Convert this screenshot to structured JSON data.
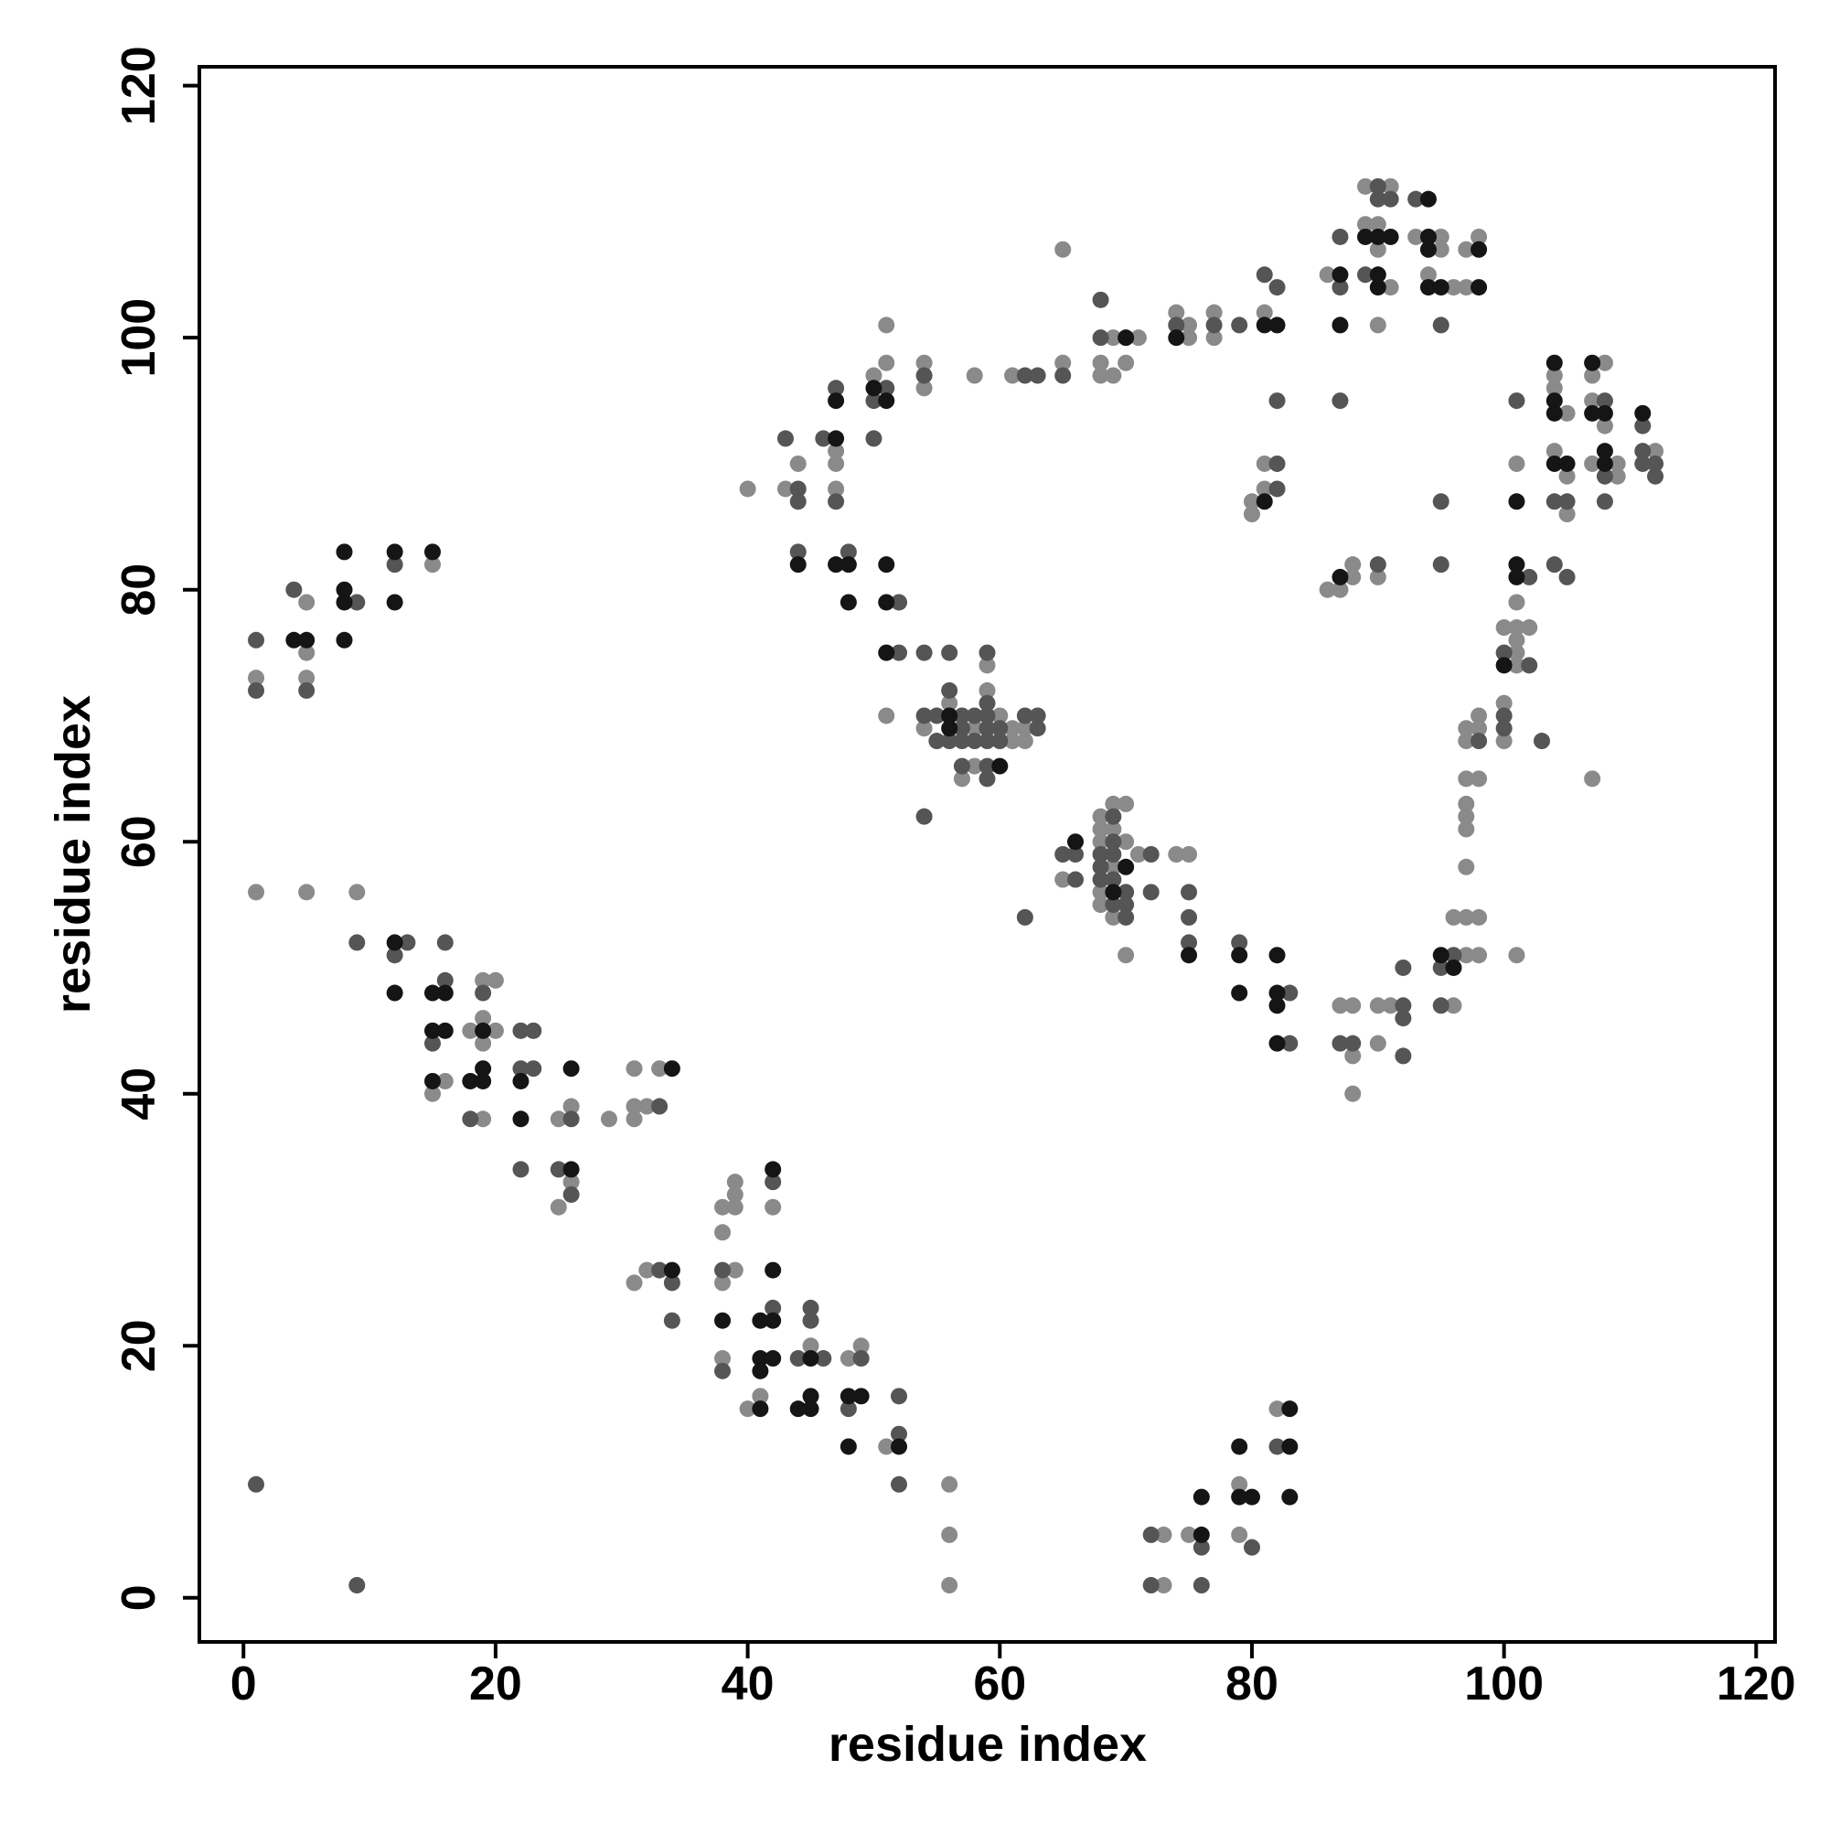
{
  "chart_data": {
    "type": "scatter",
    "xlabel": "residue index",
    "ylabel": "residue index",
    "xlim": [
      -3.5,
      121.5
    ],
    "ylim": [
      -3.5,
      121.5
    ],
    "xticks": [
      0,
      20,
      40,
      60,
      80,
      100,
      120
    ],
    "yticks": [
      0,
      20,
      40,
      60,
      80,
      100,
      120
    ],
    "grid": false,
    "series": [
      {
        "color": "#8a8a8a",
        "x": [
          1,
          5,
          5,
          5,
          15,
          1,
          5,
          9,
          15,
          16,
          18,
          19,
          20,
          19,
          19,
          20,
          19,
          25,
          26,
          26,
          25,
          29,
          31,
          31,
          32,
          31,
          33,
          31,
          32,
          38,
          38,
          39,
          39,
          39,
          39,
          38,
          38,
          42,
          41,
          40,
          45,
          48,
          49,
          51,
          56,
          56,
          56,
          73,
          73,
          75,
          79,
          79,
          82,
          40,
          43,
          44,
          47,
          47,
          47,
          50,
          51,
          51,
          51,
          54,
          54,
          54,
          56,
          57,
          58,
          58,
          58,
          59,
          59,
          60,
          61,
          61,
          61,
          62,
          62,
          65,
          65,
          65,
          68,
          68,
          68,
          68,
          68,
          69,
          69,
          69,
          69,
          70,
          70,
          70,
          71,
          74,
          75,
          68,
          68,
          69,
          69,
          70,
          71,
          74,
          75,
          75,
          77,
          77,
          81,
          80,
          80,
          81,
          81,
          86,
          89,
          89,
          90,
          90,
          90,
          91,
          91,
          93,
          94,
          95,
          95,
          96,
          97,
          97,
          98,
          86,
          87,
          88,
          88,
          90,
          87,
          88,
          88,
          88,
          90,
          90,
          91,
          96,
          96,
          97,
          98,
          97,
          98,
          97,
          97,
          97,
          97,
          97,
          98,
          97,
          97,
          98,
          98,
          100,
          100,
          100,
          101,
          101,
          101,
          101,
          102,
          101,
          101,
          101,
          104,
          104,
          104,
          105,
          105,
          105,
          107,
          107,
          107,
          108,
          108,
          109,
          109,
          107,
          112
        ],
        "values": [
          73,
          79,
          75,
          73,
          82,
          56,
          56,
          56,
          40,
          41,
          45,
          49,
          49,
          46,
          44,
          45,
          38,
          38,
          39,
          33,
          31,
          38,
          42,
          39,
          39,
          38,
          42,
          25,
          26,
          31,
          29,
          33,
          32,
          31,
          26,
          25,
          19,
          31,
          16,
          15,
          20,
          19,
          20,
          12,
          9,
          5,
          1,
          5,
          1,
          5,
          9,
          5,
          15,
          88,
          88,
          90,
          91,
          90,
          88,
          97,
          98,
          101,
          70,
          98,
          96,
          69,
          71,
          65,
          97,
          69,
          66,
          74,
          72,
          70,
          69,
          68,
          97,
          69,
          68,
          107,
          98,
          57,
          62,
          61,
          60,
          56,
          55,
          63,
          61,
          58,
          54,
          63,
          60,
          51,
          59,
          59,
          59,
          98,
          97,
          100,
          97,
          98,
          100,
          102,
          101,
          100,
          102,
          100,
          102,
          87,
          86,
          90,
          88,
          105,
          112,
          109,
          109,
          107,
          101,
          112,
          104,
          108,
          105,
          108,
          107,
          104,
          107,
          104,
          108,
          80,
          80,
          82,
          81,
          81,
          47,
          47,
          43,
          40,
          47,
          44,
          47,
          47,
          54,
          54,
          54,
          51,
          51,
          58,
          62,
          61,
          63,
          65,
          65,
          69,
          68,
          70,
          69,
          71,
          68,
          77,
          77,
          76,
          75,
          79,
          77,
          74,
          90,
          51,
          97,
          96,
          91,
          94,
          89,
          86,
          97,
          95,
          90,
          98,
          93,
          90,
          89,
          65,
          91
        ]
      },
      {
        "color": "#555555",
        "x": [
          1,
          1,
          4,
          5,
          9,
          12,
          9,
          13,
          12,
          16,
          16,
          15,
          19,
          18,
          22,
          23,
          22,
          23,
          22,
          26,
          25,
          26,
          33,
          1,
          9,
          33,
          34,
          34,
          38,
          38,
          42,
          42,
          45,
          45,
          44,
          46,
          49,
          48,
          52,
          52,
          52,
          72,
          72,
          76,
          76,
          80,
          82,
          43,
          44,
          44,
          46,
          47,
          47,
          44,
          48,
          50,
          50,
          51,
          52,
          52,
          54,
          54,
          56,
          54,
          55,
          55,
          56,
          56,
          57,
          57,
          57,
          57,
          58,
          58,
          59,
          59,
          59,
          59,
          59,
          59,
          59,
          60,
          60,
          62,
          62,
          63,
          63,
          63,
          54,
          62,
          65,
          65,
          66,
          66,
          68,
          68,
          68,
          69,
          69,
          69,
          69,
          69,
          70,
          70,
          70,
          72,
          72,
          75,
          75,
          75,
          79,
          83,
          83,
          68,
          68,
          74,
          77,
          79,
          81,
          82,
          82,
          82,
          82,
          87,
          87,
          87,
          89,
          90,
          90,
          91,
          93,
          95,
          90,
          95,
          95,
          87,
          88,
          92,
          92,
          92,
          92,
          95,
          96,
          95,
          98,
          100,
          100,
          100,
          102,
          102,
          101,
          103,
          104,
          104,
          105,
          105,
          108,
          108,
          108,
          111,
          111,
          111,
          112,
          112
        ],
        "values": [
          76,
          72,
          80,
          72,
          79,
          82,
          52,
          52,
          51,
          52,
          49,
          44,
          48,
          38,
          45,
          45,
          42,
          42,
          34,
          38,
          34,
          32,
          39,
          9,
          1,
          26,
          25,
          22,
          26,
          18,
          33,
          23,
          23,
          22,
          19,
          19,
          19,
          15,
          13,
          16,
          9,
          5,
          1,
          4,
          1,
          4,
          12,
          92,
          88,
          87,
          92,
          96,
          87,
          83,
          83,
          92,
          95,
          96,
          79,
          75,
          97,
          75,
          75,
          70,
          70,
          68,
          72,
          68,
          70,
          69,
          68,
          66,
          70,
          68,
          75,
          71,
          70,
          69,
          68,
          66,
          65,
          69,
          68,
          97,
          70,
          97,
          70,
          69,
          62,
          54,
          97,
          59,
          59,
          57,
          59,
          58,
          57,
          62,
          60,
          59,
          57,
          55,
          56,
          55,
          54,
          59,
          56,
          56,
          54,
          52,
          52,
          48,
          44,
          103,
          100,
          101,
          101,
          101,
          105,
          104,
          95,
          90,
          88,
          108,
          104,
          95,
          105,
          112,
          111,
          111,
          111,
          101,
          82,
          87,
          82,
          44,
          44,
          47,
          46,
          50,
          43,
          50,
          51,
          47,
          68,
          70,
          69,
          75,
          74,
          81,
          95,
          68,
          87,
          82,
          87,
          81,
          95,
          89,
          87,
          93,
          91,
          90,
          90,
          89
        ]
      },
      {
        "color": "#151515",
        "x": [
          4,
          5,
          8,
          8,
          8,
          8,
          12,
          12,
          15,
          12,
          12,
          15,
          16,
          15,
          16,
          15,
          19,
          18,
          19,
          19,
          22,
          22,
          26,
          26,
          34,
          34,
          38,
          42,
          42,
          41,
          42,
          41,
          42,
          41,
          41,
          45,
          45,
          44,
          45,
          48,
          49,
          48,
          52,
          76,
          76,
          79,
          79,
          80,
          83,
          83,
          83,
          47,
          47,
          44,
          47,
          48,
          48,
          50,
          51,
          51,
          51,
          51,
          56,
          56,
          60,
          66,
          69,
          70,
          75,
          79,
          79,
          82,
          82,
          82,
          82,
          70,
          74,
          81,
          82,
          81,
          87,
          87,
          89,
          90,
          90,
          90,
          91,
          94,
          94,
          94,
          94,
          95,
          98,
          98,
          87,
          95,
          96,
          100,
          101,
          101,
          101,
          104,
          104,
          104,
          104,
          105,
          107,
          107,
          108,
          108,
          108,
          111
        ],
        "values": [
          76,
          76,
          83,
          80,
          79,
          76,
          83,
          79,
          83,
          52,
          48,
          48,
          48,
          45,
          45,
          41,
          45,
          41,
          41,
          42,
          41,
          38,
          42,
          34,
          42,
          26,
          22,
          34,
          26,
          22,
          22,
          19,
          19,
          18,
          15,
          19,
          16,
          15,
          15,
          16,
          16,
          12,
          12,
          5,
          8,
          12,
          8,
          8,
          15,
          12,
          8,
          95,
          92,
          82,
          82,
          82,
          79,
          96,
          95,
          82,
          79,
          75,
          70,
          69,
          66,
          60,
          56,
          58,
          51,
          51,
          48,
          51,
          48,
          47,
          44,
          100,
          100,
          101,
          101,
          87,
          105,
          101,
          108,
          108,
          105,
          104,
          108,
          111,
          108,
          107,
          104,
          104,
          107,
          104,
          81,
          51,
          50,
          74,
          82,
          81,
          87,
          98,
          95,
          94,
          90,
          90,
          98,
          94,
          94,
          91,
          90,
          94
        ]
      }
    ]
  }
}
